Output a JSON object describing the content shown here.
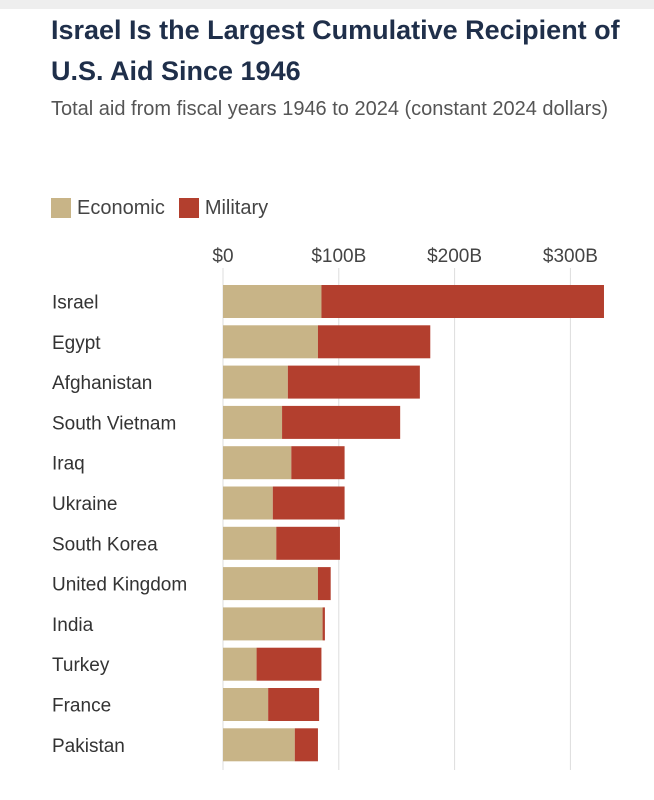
{
  "header": {
    "title": "Israel Is the Largest Cumulative Recipient of U.S. Aid Since 1946",
    "subtitle": "Total aid from fiscal years 1946 to 2024 (constant 2024 dollars)"
  },
  "chart_data": {
    "type": "bar",
    "orientation": "horizontal",
    "stacked": true,
    "title": "Israel Is the Largest Cumulative Recipient of U.S. Aid Since 1946",
    "subtitle": "Total aid from fiscal years 1946 to 2024 (constant 2024 dollars)",
    "xlabel": "",
    "ylabel": "",
    "xlim": [
      0,
      330
    ],
    "xticks": [
      0,
      100,
      200,
      300
    ],
    "xtick_labels": [
      "$0",
      "$100B",
      "$200B",
      "$300B"
    ],
    "grid": true,
    "legend_position": "top-left",
    "categories": [
      "Israel",
      "Egypt",
      "Afghanistan",
      "South Vietnam",
      "Iraq",
      "Ukraine",
      "South Korea",
      "United Kingdom",
      "India",
      "Turkey",
      "France",
      "Pakistan"
    ],
    "series": [
      {
        "name": "Economic",
        "color": "#c8b487",
        "values": [
          85,
          82,
          56,
          51,
          59,
          43,
          46,
          82,
          86,
          29,
          39,
          62
        ]
      },
      {
        "name": "Military",
        "color": "#b33f2e",
        "values": [
          244,
          97,
          114,
          102,
          46,
          62,
          55,
          11,
          2,
          56,
          44,
          20
        ]
      }
    ]
  }
}
